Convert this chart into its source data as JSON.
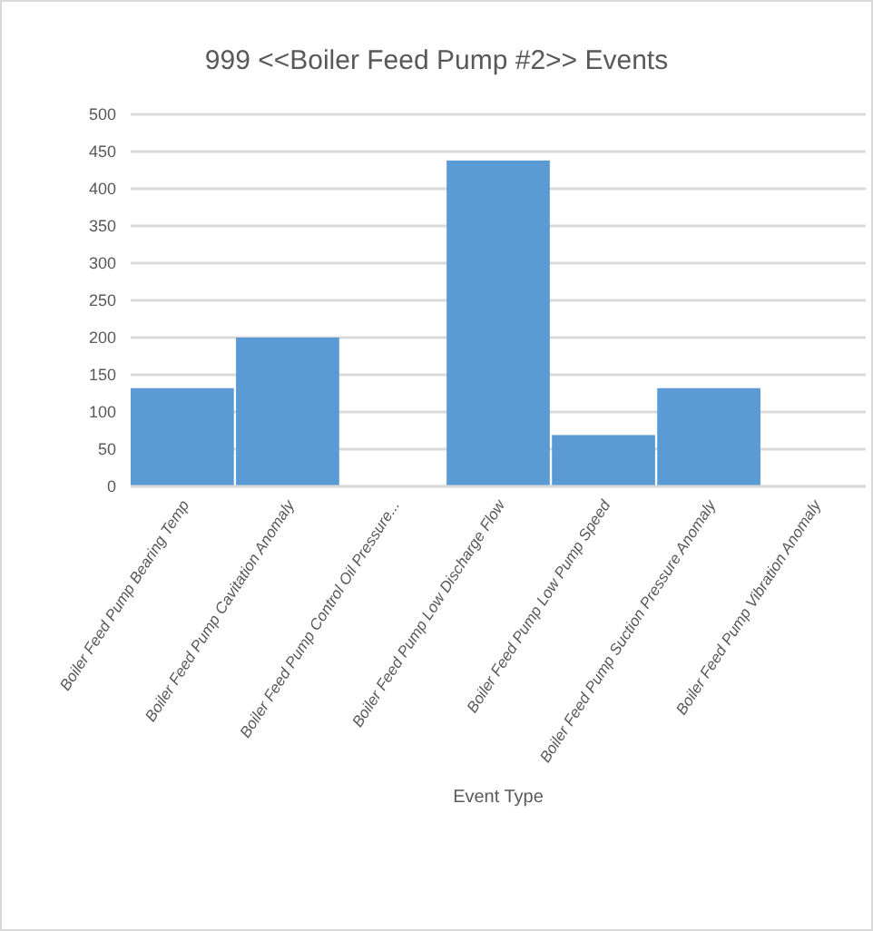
{
  "chart_data": {
    "type": "bar",
    "title": "999 <<Boiler Feed Pump #2>> Events",
    "xlabel": "Event Type",
    "categories": [
      "Boiler Feed Pump Bearing Temp",
      "Boiler Feed Pump Cavitation Anomaly",
      "Boiler Feed Pump Control Oil Pressure...",
      "Boiler Feed Pump Low Discharge Flow",
      "Boiler Feed Pump Low Pump Speed",
      "Boiler Feed Pump Suction Pressure Anomaly",
      "Boiler Feed Pump Vibration Anomaly"
    ],
    "values": [
      132,
      200,
      0,
      438,
      69,
      132,
      0
    ],
    "color": "#5b9bd5",
    "ylim": [
      0,
      500
    ],
    "yticks": [
      0,
      50,
      100,
      150,
      200,
      250,
      300,
      350,
      400,
      450,
      500
    ],
    "grid": "y"
  }
}
